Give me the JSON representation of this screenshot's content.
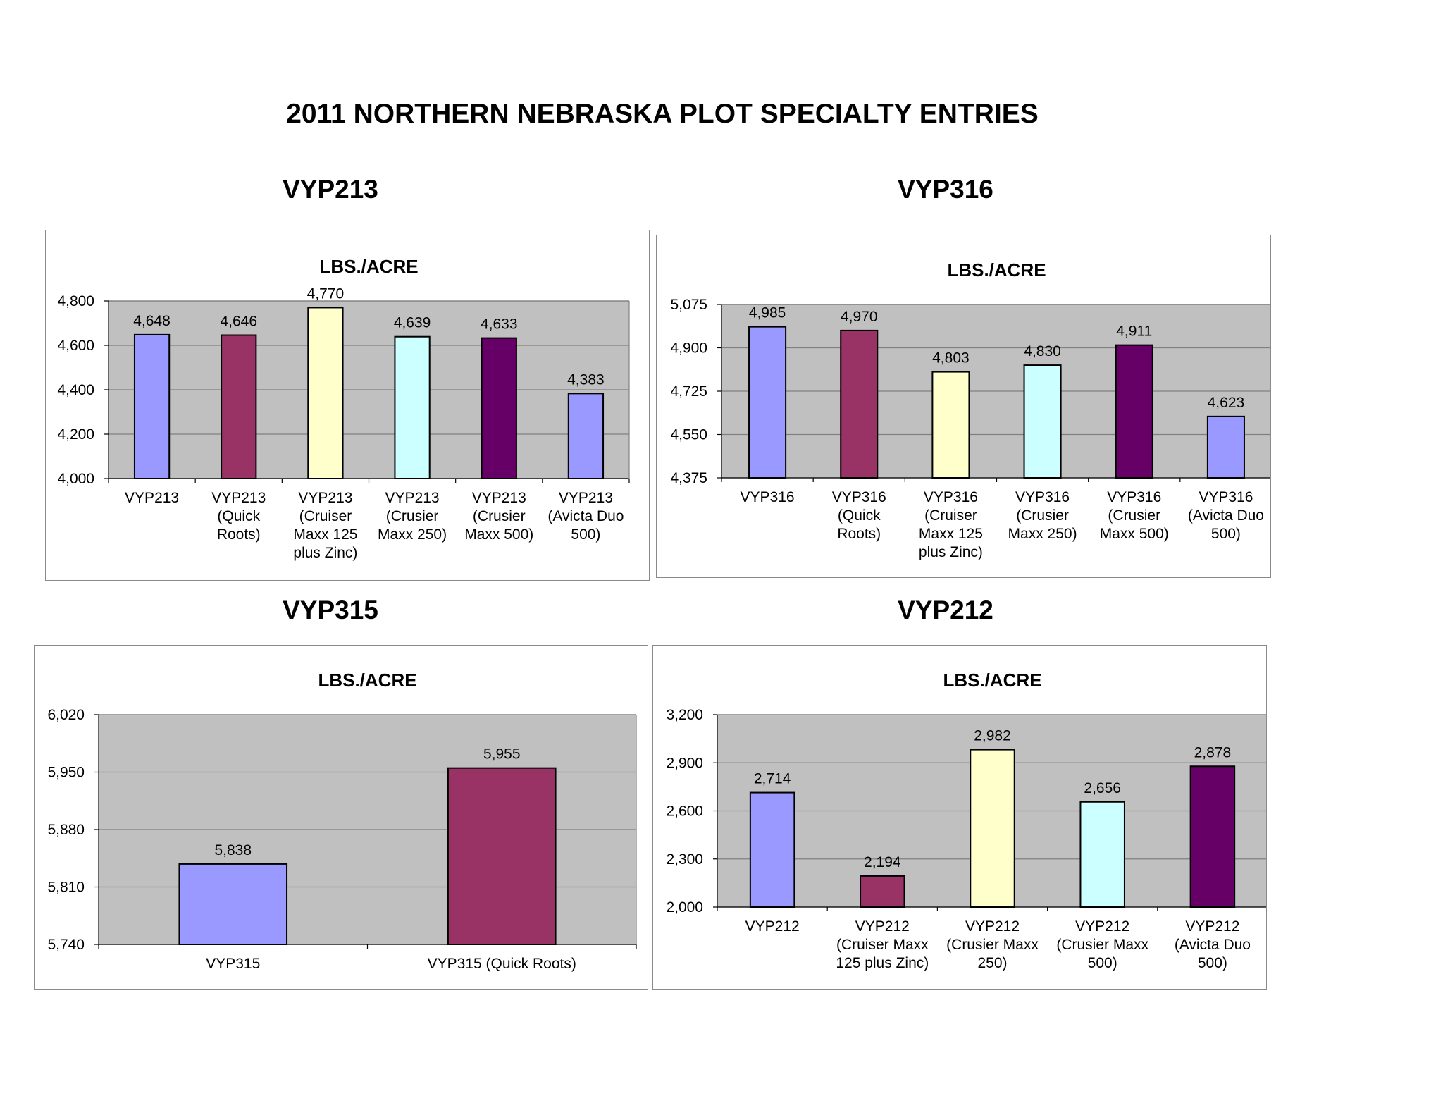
{
  "page": {
    "title": "2011 NORTHERN NEBRASKA PLOT SPECIALTY ENTRIES"
  },
  "colors": {
    "plot_background": "#c0c0c0",
    "periwinkle": "#9999ff",
    "plum": "#993366",
    "light_yellow": "#ffffcc",
    "light_cyan": "#ccffff",
    "dark_purple": "#660066",
    "gridline": "#808080"
  },
  "chart_data": [
    {
      "id": "vyp213",
      "heading": "VYP213",
      "type": "bar",
      "title": "LBS./ACRE",
      "ylim": [
        4000,
        4800
      ],
      "yticks": [
        4000,
        4200,
        4400,
        4600,
        4800
      ],
      "ytick_labels": [
        "4,000",
        "4,200",
        "4,400",
        "4,600",
        "4,800"
      ],
      "grid": true,
      "legend": "none",
      "categories": [
        [
          "VYP213"
        ],
        [
          "VYP213",
          "(Quick",
          "Roots)"
        ],
        [
          "VYP213",
          "(Cruiser",
          "Maxx 125",
          "plus Zinc)"
        ],
        [
          "VYP213",
          "(Crusier",
          "Maxx 250)"
        ],
        [
          "VYP213",
          "(Crusier",
          "Maxx 500)"
        ],
        [
          "VYP213",
          "(Avicta Duo",
          "500)"
        ]
      ],
      "values": [
        4648,
        4646,
        4770,
        4639,
        4633,
        4383
      ],
      "value_labels": [
        "4,648",
        "4,646",
        "4,770",
        "4,639",
        "4,633",
        "4,383"
      ],
      "bar_colors": [
        "#9999ff",
        "#993366",
        "#ffffcc",
        "#ccffff",
        "#660066",
        "#9999ff"
      ]
    },
    {
      "id": "vyp316",
      "heading": "VYP316",
      "type": "bar",
      "title": "LBS./ACRE",
      "ylim": [
        4375,
        5075
      ],
      "yticks": [
        4375,
        4550,
        4725,
        4900,
        5075
      ],
      "ytick_labels": [
        "4,375",
        "4,550",
        "4,725",
        "4,900",
        "5,075"
      ],
      "grid": true,
      "legend": "none",
      "categories": [
        [
          "VYP316"
        ],
        [
          "VYP316",
          "(Quick",
          "Roots)"
        ],
        [
          "VYP316",
          "(Cruiser",
          "Maxx 125",
          "plus Zinc)"
        ],
        [
          "VYP316",
          "(Crusier",
          "Maxx 250)"
        ],
        [
          "VYP316",
          "(Crusier",
          "Maxx 500)"
        ],
        [
          "VYP316",
          "(Avicta Duo",
          "500)"
        ]
      ],
      "values": [
        4985,
        4970,
        4803,
        4830,
        4911,
        4623
      ],
      "value_labels": [
        "4,985",
        "4,970",
        "4,803",
        "4,830",
        "4,911",
        "4,623"
      ],
      "bar_colors": [
        "#9999ff",
        "#993366",
        "#ffffcc",
        "#ccffff",
        "#660066",
        "#9999ff"
      ]
    },
    {
      "id": "vyp315",
      "heading": "VYP315",
      "type": "bar",
      "title": "LBS./ACRE",
      "ylim": [
        5740,
        6020
      ],
      "yticks": [
        5740,
        5810,
        5880,
        5950,
        6020
      ],
      "ytick_labels": [
        "5,740",
        "5,810",
        "5,880",
        "5,950",
        "6,020"
      ],
      "grid": true,
      "legend": "none",
      "categories": [
        [
          "VYP315"
        ],
        [
          "VYP315 (Quick Roots)"
        ]
      ],
      "values": [
        5838,
        5955
      ],
      "value_labels": [
        "5,838",
        "5,955"
      ],
      "bar_colors": [
        "#9999ff",
        "#993366"
      ]
    },
    {
      "id": "vyp212",
      "heading": "VYP212",
      "type": "bar",
      "title": "LBS./ACRE",
      "ylim": [
        2000,
        3200
      ],
      "yticks": [
        2000,
        2300,
        2600,
        2900,
        3200
      ],
      "ytick_labels": [
        "2,000",
        "2,300",
        "2,600",
        "2,900",
        "3,200"
      ],
      "grid": true,
      "legend": "none",
      "categories": [
        [
          "VYP212"
        ],
        [
          "VYP212",
          "(Cruiser Maxx",
          "125 plus Zinc)"
        ],
        [
          "VYP212",
          "(Crusier Maxx",
          "250)"
        ],
        [
          "VYP212",
          "(Crusier Maxx",
          "500)"
        ],
        [
          "VYP212",
          "(Avicta Duo",
          "500)"
        ]
      ],
      "values": [
        2714,
        2194,
        2982,
        2656,
        2878
      ],
      "value_labels": [
        "2,714",
        "2,194",
        "2,982",
        "2,656",
        "2,878"
      ],
      "bar_colors": [
        "#9999ff",
        "#993366",
        "#ffffcc",
        "#ccffff",
        "#660066"
      ]
    }
  ]
}
